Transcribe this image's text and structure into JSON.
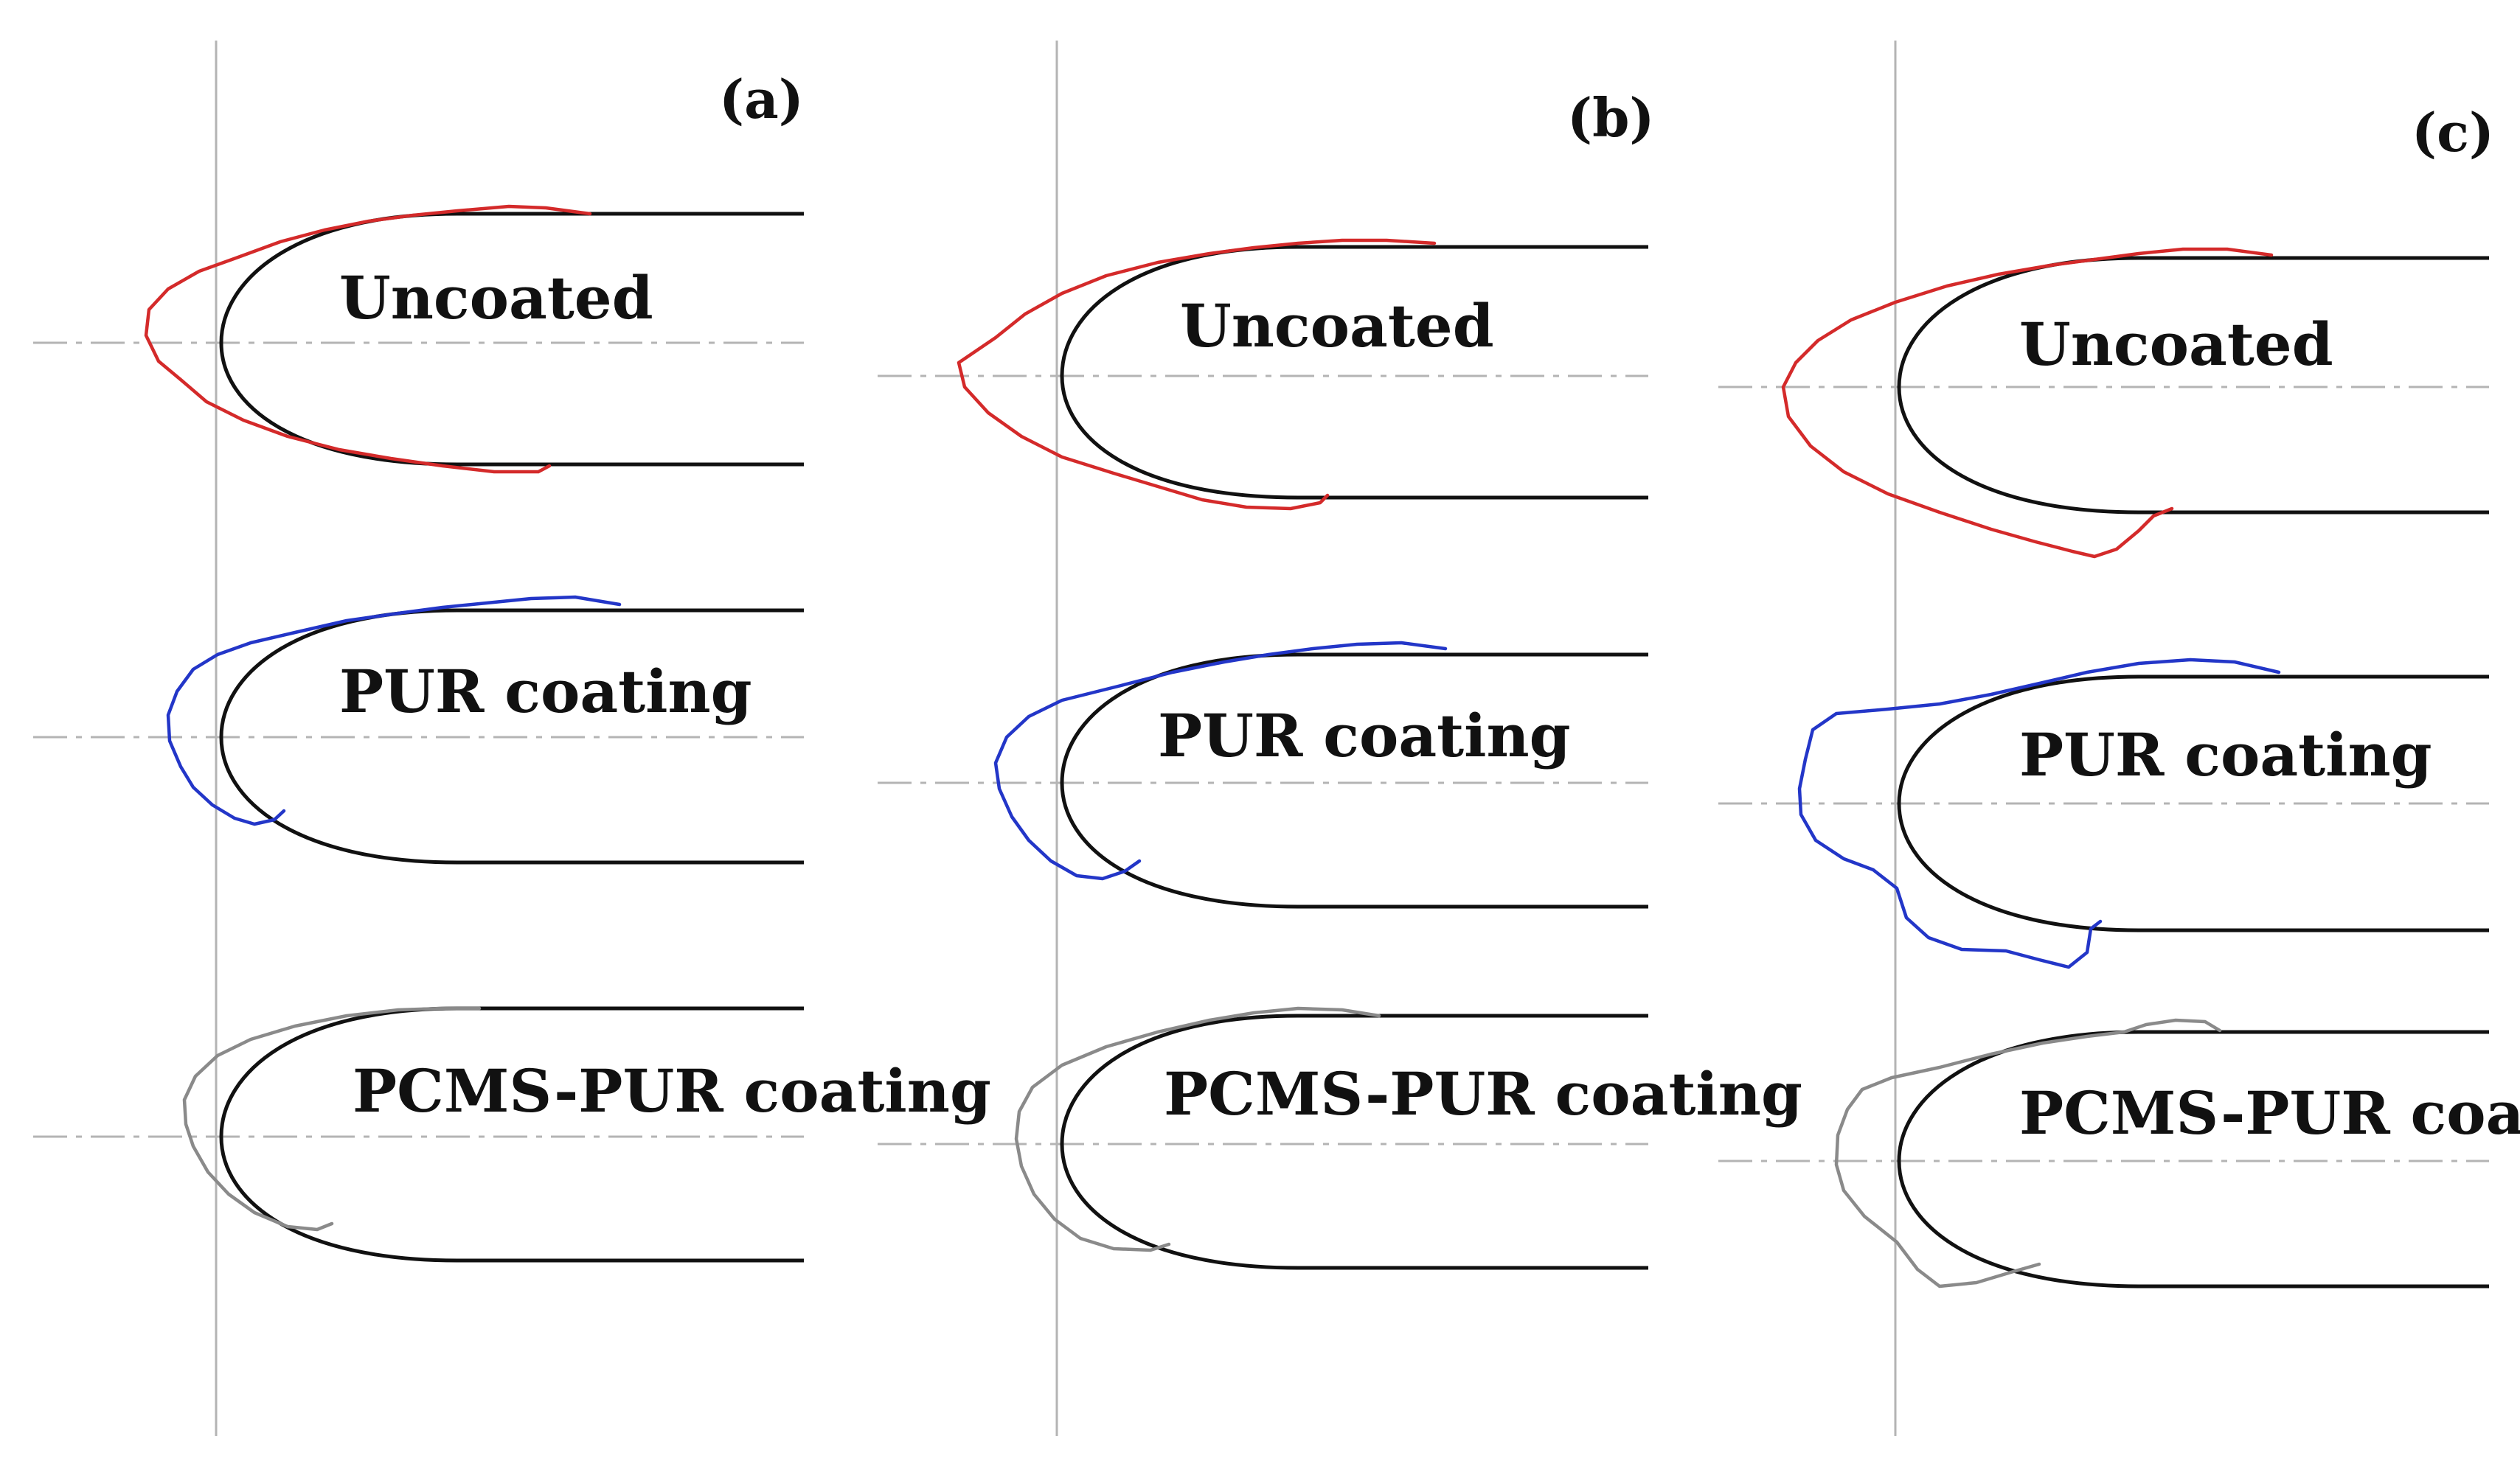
{
  "panels": [
    {
      "tag": "(a)",
      "rows": [
        {
          "label": "Uncoated",
          "ice_color": "#d42a2a"
        },
        {
          "label": "PUR coating",
          "ice_color": "#2336c8"
        },
        {
          "label": "PCMS-PUR coating",
          "ice_color": "#8a8a8a"
        }
      ]
    },
    {
      "tag": "(b)",
      "rows": [
        {
          "label": "Uncoated",
          "ice_color": "#d42a2a"
        },
        {
          "label": "PUR coating",
          "ice_color": "#2336c8"
        },
        {
          "label": "PCMS-PUR coating",
          "ice_color": "#8a8a8a"
        }
      ]
    },
    {
      "tag": "(c)",
      "rows": [
        {
          "label": "Uncoated",
          "ice_color": "#d42a2a"
        },
        {
          "label": "PUR coating",
          "ice_color": "#2336c8"
        },
        {
          "label": "PCMS-PUR coating",
          "ice_color": "#8a8a8a"
        }
      ]
    }
  ]
}
